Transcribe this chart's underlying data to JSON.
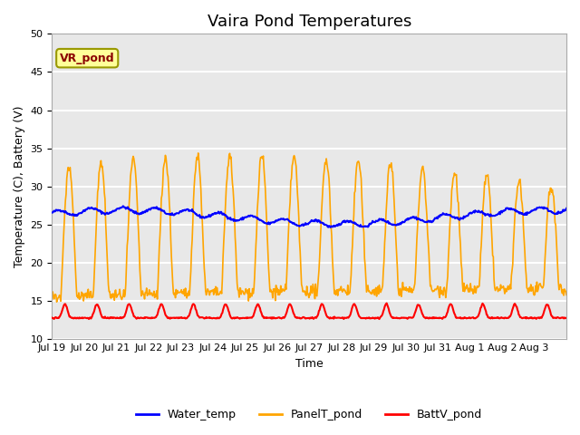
{
  "title": "Vaira Pond Temperatures",
  "xlabel": "Time",
  "ylabel": "Temperature (C), Battery (V)",
  "ylim": [
    10,
    50
  ],
  "yticks": [
    10,
    15,
    20,
    25,
    30,
    35,
    40,
    45,
    50
  ],
  "xtick_labels": [
    "Jul 19",
    "Jul 20",
    "Jul 21",
    "Jul 22",
    "Jul 23",
    "Jul 24",
    "Jul 25",
    "Jul 26",
    "Jul 27",
    "Jul 28",
    "Jul 29",
    "Jul 30",
    "Jul 31",
    "Aug 1",
    "Aug 2",
    "Aug 3"
  ],
  "legend_labels": [
    "Water_temp",
    "PanelT_pond",
    "BattV_pond"
  ],
  "water_color": "blue",
  "panel_color": "orange",
  "batt_color": "red",
  "annotation_text": "VR_pond",
  "annotation_color": "#8B0000",
  "annotation_bg": "#FFFF99",
  "annotation_edge": "#999900",
  "bg_color": "#E8E8E8",
  "grid_color": "white",
  "title_fontsize": 13,
  "axis_fontsize": 9,
  "tick_fontsize": 8,
  "legend_fontsize": 9,
  "n_days": 16
}
